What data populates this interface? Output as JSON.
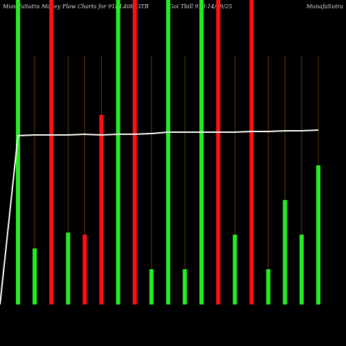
{
  "chart_data": {
    "type": "bar",
    "title": "MunafaSutra  Money Flow  Charts for 91DL40823TB",
    "subtitle": "Goi Tbill 91d-14/09/25",
    "annotations": [
      "MunafaSutra"
    ],
    "categories": [
      null,
      null,
      null,
      null,
      null,
      null,
      null,
      null,
      null,
      null,
      null,
      null,
      null,
      null,
      null,
      null,
      null,
      null,
      null
    ],
    "series": [
      {
        "type": "bar",
        "values": [
          440,
          81,
          440,
          104,
          101,
          274,
          440,
          440,
          51,
          440,
          51,
          440,
          440,
          101,
          440,
          51,
          151,
          101,
          201
        ],
        "colors": [
          "#22ee22",
          "#22ee22",
          "#ff1111",
          "#22ee22",
          "#ff1111",
          "#ff1111",
          "#22ee22",
          "#ff1111",
          "#22ee22",
          "#22ee22",
          "#22ee22",
          "#22ee22",
          "#ff1111",
          "#22ee22",
          "#ff1111",
          "#22ee22",
          "#22ee22",
          "#22ee22",
          "#22ee22"
        ]
      },
      {
        "type": "line",
        "color": "#ffffff",
        "values": [
          244,
          245,
          245,
          245,
          246,
          245,
          246,
          246,
          247,
          249,
          249,
          249,
          249,
          249,
          250,
          250,
          251,
          251,
          252
        ]
      }
    ],
    "ylim": [
      0,
      440
    ]
  }
}
